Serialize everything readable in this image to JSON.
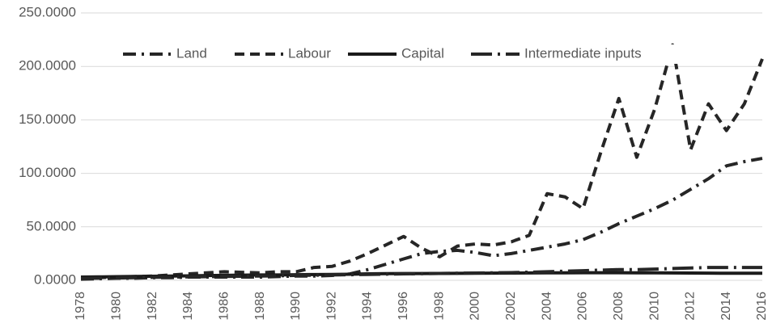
{
  "chart_data": {
    "type": "line",
    "x": [
      1978,
      1979,
      1980,
      1981,
      1982,
      1983,
      1984,
      1985,
      1986,
      1987,
      1988,
      1989,
      1990,
      1991,
      1992,
      1993,
      1994,
      1995,
      1996,
      1997,
      1998,
      1999,
      2000,
      2001,
      2002,
      2003,
      2004,
      2005,
      2006,
      2007,
      2008,
      2009,
      2010,
      2011,
      2012,
      2013,
      2014,
      2015,
      2016
    ],
    "xlim": [
      1978,
      2016
    ],
    "xticks": [
      1978,
      1980,
      1982,
      1984,
      1986,
      1988,
      1990,
      1992,
      1994,
      1996,
      1998,
      2000,
      2002,
      2004,
      2006,
      2008,
      2010,
      2012,
      2014,
      2016
    ],
    "ylim": [
      0,
      250
    ],
    "yticks": [
      {
        "value": 0,
        "label": "0.0000"
      },
      {
        "value": 50,
        "label": "50.0000"
      },
      {
        "value": 100,
        "label": "100.0000"
      },
      {
        "value": 150,
        "label": "150.0000"
      },
      {
        "value": 200,
        "label": "200.0000"
      },
      {
        "value": 250,
        "label": "250.0000"
      }
    ],
    "grid": true,
    "legend": "top",
    "series": [
      {
        "name": "Land",
        "color": "#262626",
        "dash": "dash-dot",
        "values": [
          1,
          1.5,
          2,
          2,
          2.5,
          2.5,
          3,
          3,
          3,
          3,
          3,
          3.5,
          4,
          4,
          4.5,
          6,
          10,
          15,
          20,
          25,
          27,
          28,
          26,
          23,
          25,
          28,
          31,
          34,
          38,
          45,
          53,
          60,
          67,
          75,
          85,
          95,
          107,
          111,
          114
        ]
      },
      {
        "name": "Labour",
        "color": "#262626",
        "dash": "dash",
        "values": [
          2,
          2.5,
          3,
          3.5,
          4,
          5,
          6,
          7,
          8,
          7.5,
          7,
          8,
          8,
          12,
          13,
          18,
          25,
          33,
          41,
          30,
          22,
          32,
          34,
          33,
          36,
          42,
          81,
          78,
          67,
          120,
          170,
          115,
          160,
          220,
          122,
          165,
          140,
          165,
          207
        ]
      },
      {
        "name": "Capital",
        "color": "#1a1a1a",
        "dash": "solid",
        "values": [
          3,
          3.2,
          3.4,
          3.6,
          3.8,
          4,
          4.2,
          4.4,
          4.6,
          4.8,
          5,
          5,
          5.2,
          5.4,
          5.5,
          5.7,
          6,
          6.2,
          6.3,
          6.3,
          6.4,
          6.5,
          6.6,
          6.7,
          6.8,
          6.9,
          7,
          7,
          7.1,
          7.1,
          7.1,
          7,
          7,
          6.9,
          6.8,
          6.7,
          6.6,
          6.6,
          6.6
        ]
      },
      {
        "name": "Intermediate inputs",
        "color": "#262626",
        "dash": "long-dash-dot",
        "values": [
          2,
          2,
          2.2,
          2.5,
          2.8,
          3,
          3.2,
          3.4,
          3.6,
          3.8,
          4,
          4.2,
          4.5,
          4.8,
          5,
          5.2,
          5.5,
          5.8,
          6,
          6.2,
          6.4,
          6.6,
          6.8,
          7,
          7.2,
          7.6,
          8,
          8.5,
          9,
          9.5,
          10,
          10,
          10.5,
          11,
          11.5,
          12,
          12,
          12,
          12
        ]
      }
    ]
  }
}
